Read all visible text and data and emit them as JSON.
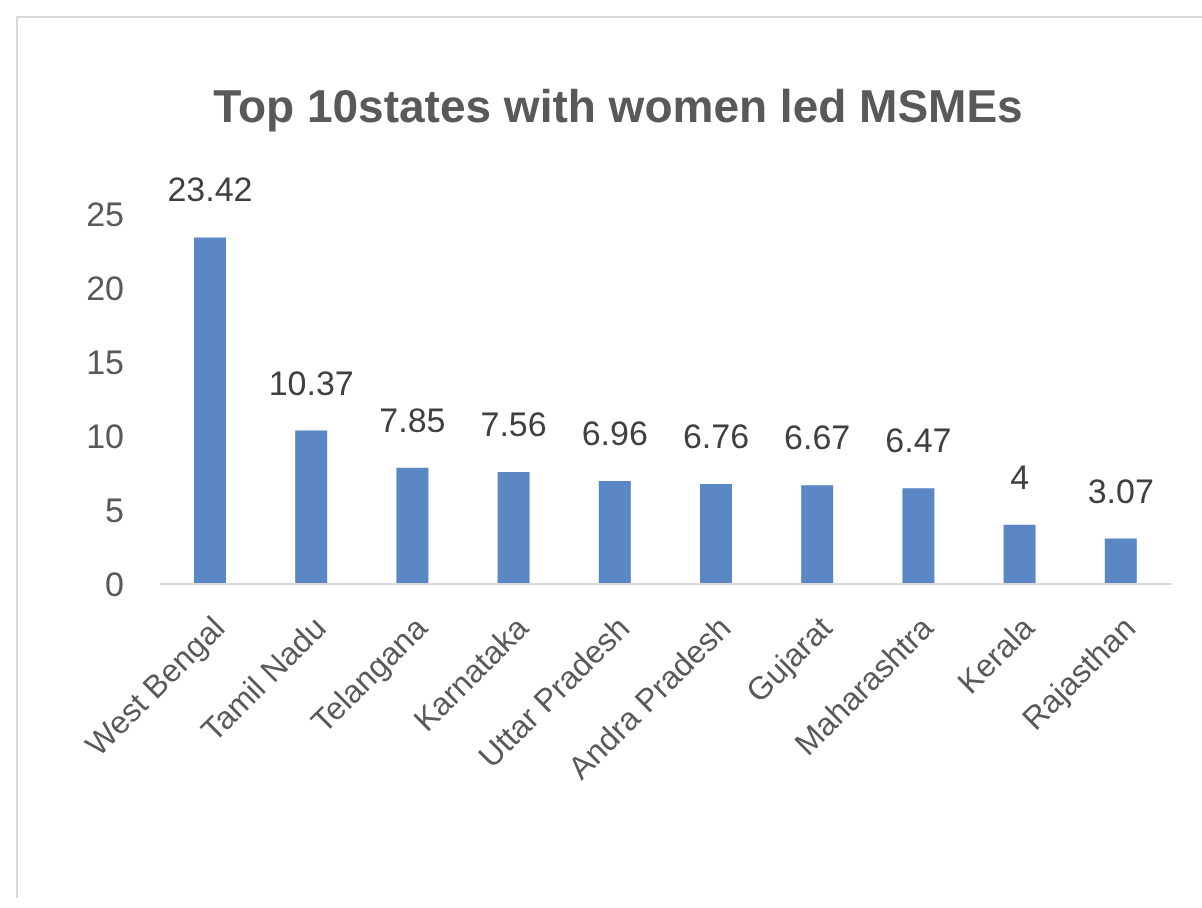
{
  "chart_data": {
    "type": "bar",
    "title": "Top 10states with women led MSMEs",
    "categories": [
      "West Bengal",
      "Tamil Nadu",
      "Telangana",
      "Karnataka",
      "Uttar Pradesh",
      "Andra Pradesh",
      "Gujarat",
      "Maharashtra",
      "Kerala",
      "Rajasthan"
    ],
    "values": [
      23.42,
      10.37,
      7.85,
      7.56,
      6.96,
      6.76,
      6.67,
      6.47,
      4,
      3.07
    ],
    "color": "#5b87c5",
    "ylim": [
      0,
      25
    ],
    "yticks": [
      0,
      5,
      10,
      15,
      20,
      25
    ],
    "data_labels": true
  }
}
